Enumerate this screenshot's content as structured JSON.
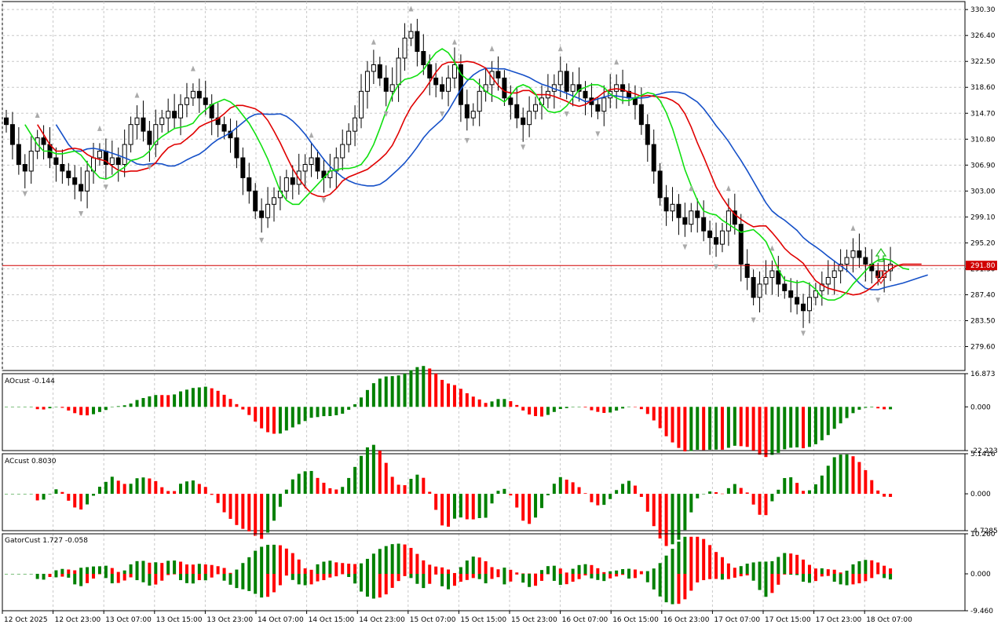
{
  "price_panel": {
    "current_price_label": "291.80",
    "current_price": 291.8,
    "y_range": [
      276.0,
      331.5
    ],
    "y_ticks": [
      "330.30",
      "326.40",
      "322.50",
      "318.60",
      "314.70",
      "310.80",
      "306.90",
      "303.00",
      "299.10",
      "295.20",
      "291.30",
      "287.40",
      "283.50",
      "279.60"
    ],
    "y_tick_values": [
      330.3,
      326.4,
      322.5,
      318.6,
      314.7,
      310.8,
      306.9,
      303.0,
      299.1,
      295.2,
      291.3,
      287.4,
      283.5,
      279.6
    ],
    "colors": {
      "bull": "#ffffff",
      "bear": "#000000",
      "jaw": "#1550c8",
      "teeth": "#e00000",
      "lips": "#10e010",
      "price_line": "#d00000",
      "signal_up": "#20c020",
      "signal_down": "#e02020"
    }
  },
  "ao_panel": {
    "label": "AOcust -0.144",
    "y_ticks": [
      "16.873",
      "0.000",
      "-22.223"
    ],
    "y_tick_values": [
      16.873,
      0,
      -22.223
    ],
    "colors": {
      "up": "#008000",
      "down": "#ff0000"
    }
  },
  "ac_panel": {
    "label": "ACcust 0.8030",
    "y_ticks": [
      "5.1416",
      "0.000",
      "-4.7285"
    ],
    "y_tick_values": [
      5.1416,
      0,
      -4.7285
    ],
    "colors": {
      "up": "#008000",
      "down": "#ff0000"
    }
  },
  "gator_panel": {
    "label": "GatorCust 1.727 -0.058",
    "y_ticks": [
      "10.260",
      "0.000",
      "-9.460"
    ],
    "y_tick_values": [
      10.26,
      0,
      -9.46
    ],
    "colors": {
      "up": "#008000",
      "down": "#ff0000"
    }
  },
  "time_axis": {
    "labels": [
      "12 Oct 2025",
      "12 Oct 23:00",
      "13 Oct 07:00",
      "13 Oct 15:00",
      "13 Oct 23:00",
      "14 Oct 07:00",
      "14 Oct 15:00",
      "14 Oct 23:00",
      "15 Oct 07:00",
      "15 Oct 15:00",
      "15 Oct 23:00",
      "16 Oct 07:00",
      "16 Oct 15:00",
      "16 Oct 23:00",
      "17 Oct 07:00",
      "17 Oct 15:00",
      "17 Oct 23:00",
      "18 Oct 07:00"
    ]
  },
  "chart_data": {
    "type": "candlestick",
    "timeframe_labels": [
      "12 Oct 2025",
      "12 Oct 23:00",
      "13 Oct 07:00",
      "13 Oct 15:00",
      "13 Oct 23:00",
      "14 Oct 07:00",
      "14 Oct 15:00",
      "14 Oct 23:00",
      "15 Oct 07:00",
      "15 Oct 15:00",
      "15 Oct 23:00",
      "16 Oct 07:00",
      "16 Oct 15:00",
      "16 Oct 23:00",
      "17 Oct 07:00",
      "17 Oct 15:00",
      "17 Oct 23:00",
      "18 Oct 07:00"
    ],
    "closes": [
      313,
      310,
      307,
      306,
      309,
      311,
      310,
      308,
      307,
      306,
      305,
      304,
      303,
      306,
      308,
      309,
      307,
      308,
      307,
      310,
      313,
      314,
      312,
      310,
      313,
      314,
      315,
      314,
      316,
      317,
      318,
      317,
      316,
      314,
      313,
      312,
      311,
      308,
      305,
      303,
      300,
      299,
      301,
      302,
      303,
      305,
      304,
      306,
      307,
      308,
      306,
      305,
      306,
      308,
      310,
      312,
      314,
      318,
      321,
      322,
      320,
      318,
      319,
      323,
      326,
      327,
      324,
      322,
      320,
      319,
      318,
      320,
      322,
      316,
      314,
      315,
      318,
      319,
      321,
      320,
      317,
      316,
      314,
      313,
      315,
      316,
      317,
      318,
      319,
      321,
      318,
      319,
      318,
      317,
      316,
      315,
      317,
      318,
      319,
      318,
      317,
      316,
      313,
      310,
      306,
      302,
      300,
      301,
      299,
      298,
      300,
      299,
      297,
      296,
      295,
      297,
      300,
      298,
      292,
      290,
      287,
      289,
      290,
      291,
      289,
      288,
      287,
      286,
      285,
      287,
      288,
      289,
      290,
      291,
      292,
      293,
      294,
      293,
      292,
      291,
      290,
      291,
      292
    ]
  }
}
